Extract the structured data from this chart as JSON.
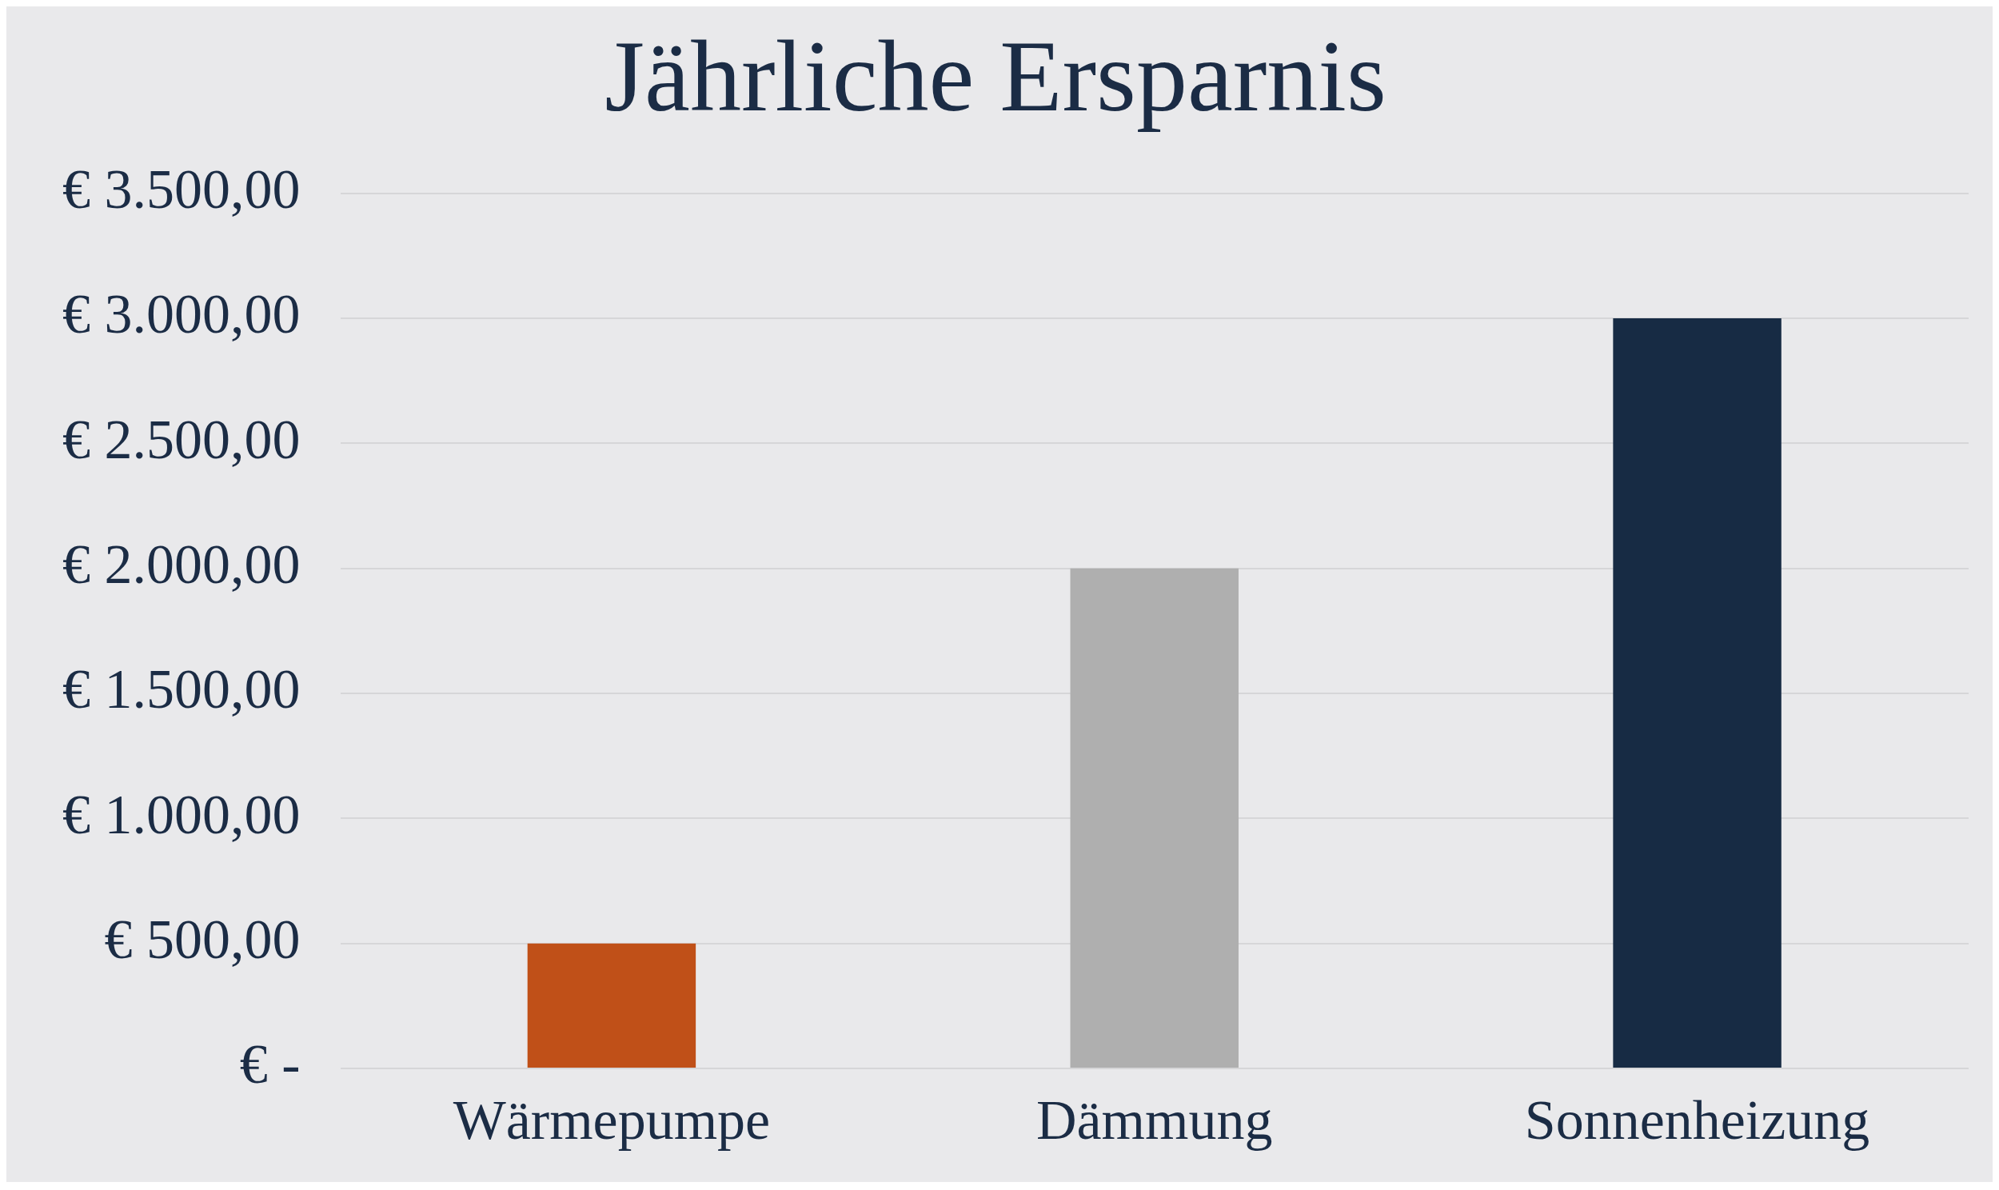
{
  "chart_data": {
    "type": "bar",
    "title": "Jährliche Ersparnis",
    "categories": [
      "Wärmepumpe",
      "Dämmung",
      "Sonnenheizung"
    ],
    "values": [
      500,
      2000,
      3000
    ],
    "colors": [
      "#c05018",
      "#afafaf",
      "#172b44"
    ],
    "ylim": [
      0,
      3500
    ],
    "yticks": [
      {
        "value": 0,
        "label": "€ -"
      },
      {
        "value": 500,
        "label": "€ 500,00"
      },
      {
        "value": 1000,
        "label": "€ 1.000,00"
      },
      {
        "value": 1500,
        "label": "€ 1.500,00"
      },
      {
        "value": 2000,
        "label": "€ 2.000,00"
      },
      {
        "value": 2500,
        "label": "€ 2.500,00"
      },
      {
        "value": 3000,
        "label": "€ 3.000,00"
      },
      {
        "value": 3500,
        "label": "€ 3.500,00"
      }
    ],
    "grid": "y",
    "legend": false
  }
}
